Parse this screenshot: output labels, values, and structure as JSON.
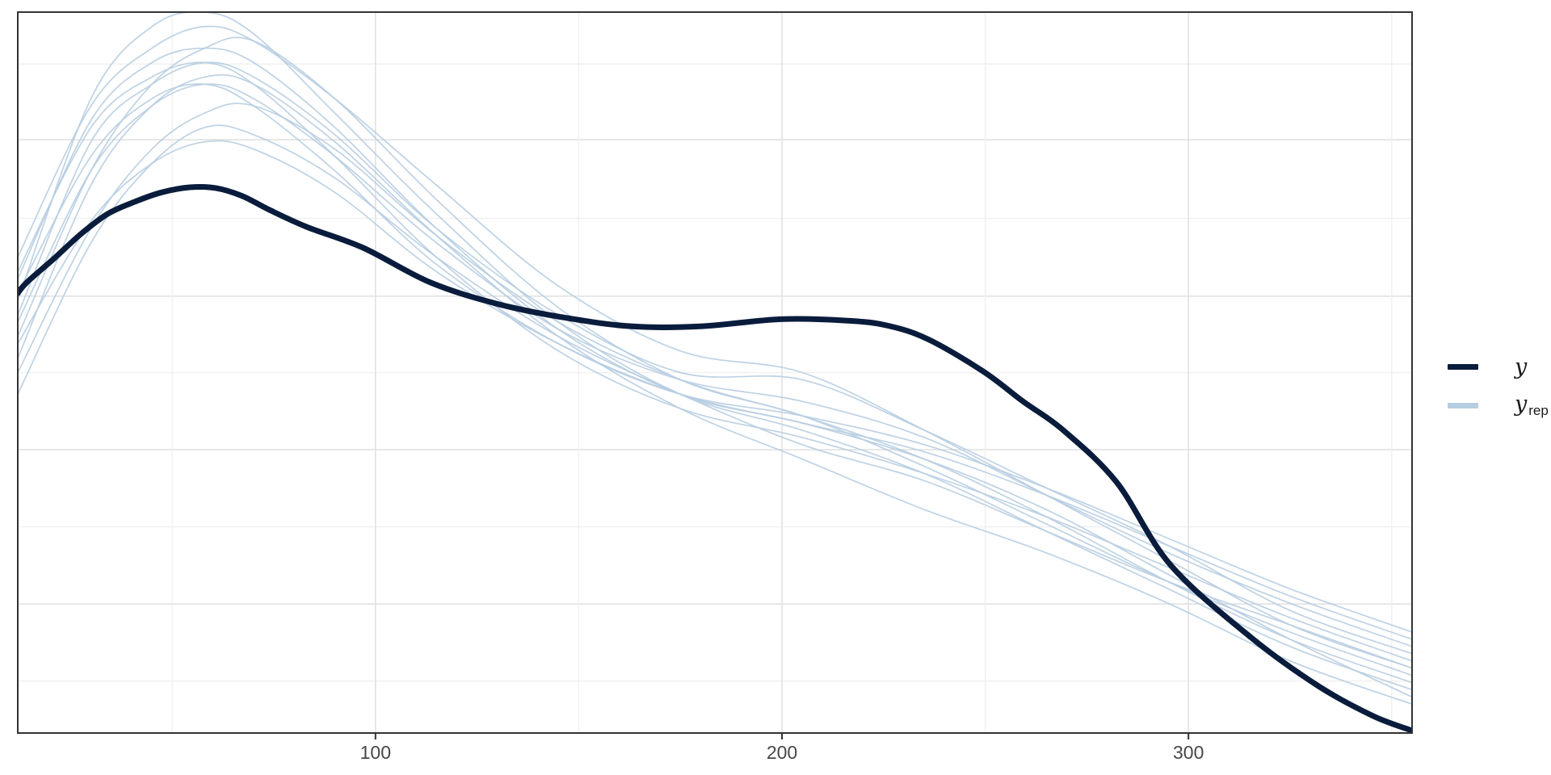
{
  "figure": {
    "kind": "posterior predictive check density overlay",
    "title": ""
  },
  "colors": {
    "background": "#ffffff",
    "y_line": "#0a1c3c",
    "yrep_line": "#b7cde1",
    "grid_major": "#e2e2e2",
    "grid_minor": "#efefef",
    "panel_border": "#333333",
    "tick_mark": "#333333",
    "tick_label": "#474747"
  },
  "legend": {
    "position": "right-center",
    "items": [
      {
        "label": "y",
        "subscript": "",
        "swatch_color": "#0a1c3c"
      },
      {
        "label": "y",
        "subscript": "rep",
        "swatch_color": "#b7cde1"
      }
    ]
  },
  "x_axis": {
    "tick_labels": [
      "100",
      "200",
      "300"
    ],
    "tick_values": [
      100,
      200,
      300
    ],
    "minor_grid_values": [
      50,
      150,
      250,
      350
    ],
    "domain": [
      12,
      355
    ],
    "label": ""
  },
  "y_axis": {
    "label": "",
    "tick_labels": [],
    "gridline_fractions_from_top": [
      0.072,
      0.177,
      0.286,
      0.394,
      0.5,
      0.607,
      0.714,
      0.821,
      0.928
    ]
  },
  "chart_data": {
    "type": "line",
    "title": "",
    "xlabel": "",
    "ylabel": "",
    "x_domain": [
      12,
      355
    ],
    "y_unit": "density (normalized 0-1 of panel height, no axis labels shown)",
    "grid": true,
    "legend_position": "right",
    "series": [
      {
        "name": "y",
        "role": "observed",
        "color": "#0a1c3c",
        "stroke_width": 7,
        "x": [
          12.0,
          14.2,
          20.9,
          27.5,
          34.1,
          40.8,
          47.4,
          54.3,
          60.7,
          67.2,
          73.8,
          83.1,
          97.0,
          113.5,
          130.2,
          146.7,
          163.2,
          179.8,
          199.7,
          216.2,
          226.1,
          236.0,
          249.4,
          259.3,
          269.2,
          282.3,
          295.6,
          315.5,
          332.0,
          345.3,
          354.6
        ],
        "y": [
          0.61,
          0.625,
          0.658,
          0.692,
          0.72,
          0.737,
          0.75,
          0.757,
          0.756,
          0.745,
          0.726,
          0.702,
          0.673,
          0.625,
          0.595,
          0.576,
          0.564,
          0.564,
          0.574,
          0.572,
          0.565,
          0.546,
          0.502,
          0.46,
          0.42,
          0.348,
          0.233,
          0.132,
          0.065,
          0.024,
          0.004
        ]
      },
      {
        "name": "y_rep",
        "role": "replicated",
        "color": "#b7cde1",
        "stroke_width": 1.7,
        "x_grid": [
          12,
          30,
          45,
          58,
          70,
          90,
          115,
          145,
          175,
          205,
          235,
          265,
          295,
          325,
          355
        ],
        "lines": [
          [
            0.6,
            0.88,
            0.98,
            1.0,
            0.97,
            0.86,
            0.72,
            0.57,
            0.47,
            0.42,
            0.36,
            0.28,
            0.2,
            0.12,
            0.06
          ],
          [
            0.66,
            0.87,
            0.95,
            0.98,
            0.96,
            0.88,
            0.76,
            0.62,
            0.53,
            0.5,
            0.42,
            0.33,
            0.24,
            0.15,
            0.09
          ],
          [
            0.55,
            0.78,
            0.9,
            0.95,
            0.96,
            0.88,
            0.74,
            0.59,
            0.49,
            0.44,
            0.37,
            0.29,
            0.21,
            0.14,
            0.08
          ],
          [
            0.63,
            0.85,
            0.93,
            0.95,
            0.93,
            0.84,
            0.7,
            0.56,
            0.47,
            0.43,
            0.38,
            0.31,
            0.22,
            0.13,
            0.05
          ],
          [
            0.58,
            0.82,
            0.9,
            0.93,
            0.91,
            0.83,
            0.7,
            0.58,
            0.5,
            0.49,
            0.42,
            0.34,
            0.26,
            0.17,
            0.11
          ],
          [
            0.52,
            0.76,
            0.87,
            0.91,
            0.9,
            0.82,
            0.69,
            0.55,
            0.45,
            0.38,
            0.31,
            0.25,
            0.18,
            0.1,
            0.04
          ],
          [
            0.64,
            0.84,
            0.91,
            0.93,
            0.9,
            0.8,
            0.66,
            0.53,
            0.45,
            0.41,
            0.36,
            0.3,
            0.23,
            0.16,
            0.1
          ],
          [
            0.57,
            0.78,
            0.87,
            0.9,
            0.88,
            0.8,
            0.68,
            0.56,
            0.49,
            0.46,
            0.41,
            0.33,
            0.25,
            0.18,
            0.12
          ],
          [
            0.5,
            0.7,
            0.81,
            0.86,
            0.87,
            0.81,
            0.69,
            0.57,
            0.49,
            0.44,
            0.38,
            0.3,
            0.21,
            0.13,
            0.07
          ],
          [
            0.61,
            0.8,
            0.88,
            0.9,
            0.87,
            0.78,
            0.65,
            0.54,
            0.47,
            0.44,
            0.4,
            0.34,
            0.27,
            0.2,
            0.14
          ],
          [
            0.47,
            0.68,
            0.79,
            0.84,
            0.83,
            0.77,
            0.66,
            0.55,
            0.47,
            0.4,
            0.35,
            0.28,
            0.21,
            0.15,
            0.09
          ],
          [
            0.54,
            0.71,
            0.79,
            0.82,
            0.81,
            0.75,
            0.64,
            0.54,
            0.47,
            0.43,
            0.39,
            0.33,
            0.26,
            0.19,
            0.13
          ]
        ]
      }
    ]
  }
}
